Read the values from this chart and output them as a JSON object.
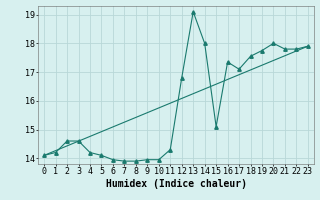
{
  "title": "",
  "xlabel": "Humidex (Indice chaleur)",
  "ylabel": "",
  "background_color": "#d7f0ef",
  "grid_color": "#b8d8d8",
  "line_color": "#1a7a6e",
  "xlim": [
    -0.5,
    23.5
  ],
  "ylim": [
    13.8,
    19.3
  ],
  "yticks": [
    14,
    15,
    16,
    17,
    18,
    19
  ],
  "xticks": [
    0,
    1,
    2,
    3,
    4,
    5,
    6,
    7,
    8,
    9,
    10,
    11,
    12,
    13,
    14,
    15,
    16,
    17,
    18,
    19,
    20,
    21,
    22,
    23
  ],
  "curve1_x": [
    0,
    1,
    2,
    3,
    4,
    5,
    6,
    7,
    8,
    9,
    10,
    11,
    12,
    13,
    14,
    15,
    16,
    17,
    18,
    19,
    20,
    21,
    22,
    23
  ],
  "curve1_y": [
    14.1,
    14.2,
    14.6,
    14.6,
    14.2,
    14.1,
    13.95,
    13.9,
    13.9,
    13.95,
    13.95,
    14.3,
    16.8,
    19.1,
    18.0,
    15.1,
    17.35,
    17.1,
    17.55,
    17.75,
    18.0,
    17.8,
    17.8,
    17.9
  ],
  "curve2_x": [
    0,
    23
  ],
  "curve2_y": [
    14.1,
    17.9
  ],
  "marker": "^",
  "marker_size": 2.5,
  "line_width": 0.8,
  "xlabel_fontsize": 7,
  "tick_fontsize": 6,
  "fig_width": 3.2,
  "fig_height": 2.0,
  "dpi": 100
}
